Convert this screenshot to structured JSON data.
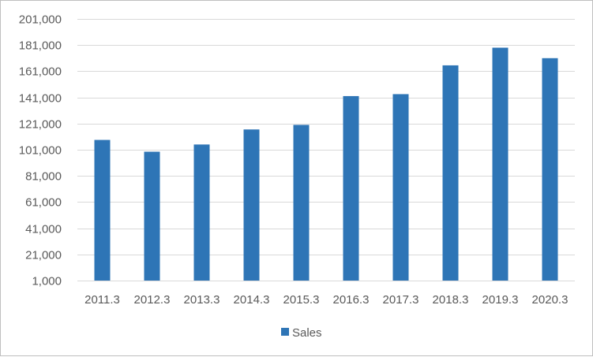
{
  "chart_data": {
    "type": "bar",
    "categories": [
      "2011.3",
      "2012.3",
      "2013.3",
      "2014.3",
      "2015.3",
      "2016.3",
      "2017.3",
      "2018.3",
      "2019.3",
      "2020.3"
    ],
    "series": [
      {
        "name": "Sales",
        "color": "#2e75b6",
        "values": [
          108500,
          99500,
          105000,
          116500,
          120000,
          142000,
          143500,
          165500,
          179000,
          171000
        ]
      }
    ],
    "ylim": [
      1000,
      201000
    ],
    "yticks": [
      1000,
      21000,
      41000,
      61000,
      81000,
      101000,
      121000,
      141000,
      161000,
      181000,
      201000
    ],
    "ytick_labels": [
      "1,000",
      "21,000",
      "41,000",
      "61,000",
      "81,000",
      "101,000",
      "121,000",
      "141,000",
      "161,000",
      "181,000",
      "201,000"
    ],
    "grid": true,
    "legend_position": "bottom",
    "gridline_color": "#d9d9d9"
  }
}
